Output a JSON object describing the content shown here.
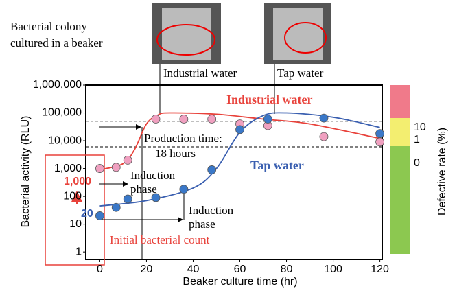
{
  "chart_data": {
    "type": "scatter",
    "xlabel": "Beaker culture time (hr)",
    "ylabel": "Bacterial activity (RLU)",
    "xlim": [
      -6,
      121
    ],
    "xticks": [
      0,
      20,
      40,
      60,
      80,
      100,
      120
    ],
    "ylim": [
      0.54,
      1000000
    ],
    "log_y": true,
    "yticks": [
      1,
      10,
      100,
      {
        "value": 1000,
        "label": "1,000"
      },
      {
        "value": 10000,
        "label": "10,000"
      },
      {
        "value": 100000,
        "label": "100,000"
      },
      {
        "value": 1000000,
        "label": "1,000,000"
      }
    ],
    "thresholds": [
      50000,
      6000
    ],
    "series": [
      {
        "name": "Industrial water",
        "color": "#e8413a",
        "marker": "#f0a0c0",
        "x": [
          0,
          7,
          12,
          24,
          36,
          48,
          60,
          72,
          96,
          120
        ],
        "values": [
          1000,
          1100,
          2000,
          60000,
          60000,
          60000,
          40000,
          35000,
          14000,
          9000
        ],
        "curve_x": [
          0,
          10,
          15,
          20,
          25,
          30,
          50,
          70,
          90,
          120
        ],
        "curve_values": [
          900,
          1500,
          5000,
          40000,
          85000,
          100000,
          90000,
          60000,
          40000,
          12000
        ]
      },
      {
        "name": "Tap water",
        "color": "#3a5fb0",
        "marker": "#3a78c8",
        "x": [
          0,
          7,
          12,
          24,
          36,
          48,
          60,
          72,
          96,
          120
        ],
        "values": [
          20,
          40,
          80,
          90,
          180,
          900,
          25000,
          60000,
          65000,
          18000
        ],
        "curve_x": [
          0,
          20,
          40,
          50,
          60,
          70,
          80,
          100,
          120
        ],
        "curve_values": [
          45,
          70,
          200,
          1000,
          20000,
          80000,
          100000,
          70000,
          30000
        ]
      }
    ],
    "defective_rate": {
      "label": "Defective rate (%)",
      "levels": [
        "10",
        "1",
        "0"
      ]
    },
    "annotations": {
      "colony": [
        "Bacterial colony",
        "cultured in a beaker"
      ],
      "photo1": "Industrial water",
      "photo2": "Tap water",
      "production": [
        "Production time:",
        "18 hours"
      ],
      "induction1": [
        "Induction",
        "phase"
      ],
      "induction2": [
        "Induction",
        "phase"
      ],
      "initial": "Initial bacterial count",
      "initial_industrial": "1,000",
      "initial_tap": "20"
    }
  }
}
